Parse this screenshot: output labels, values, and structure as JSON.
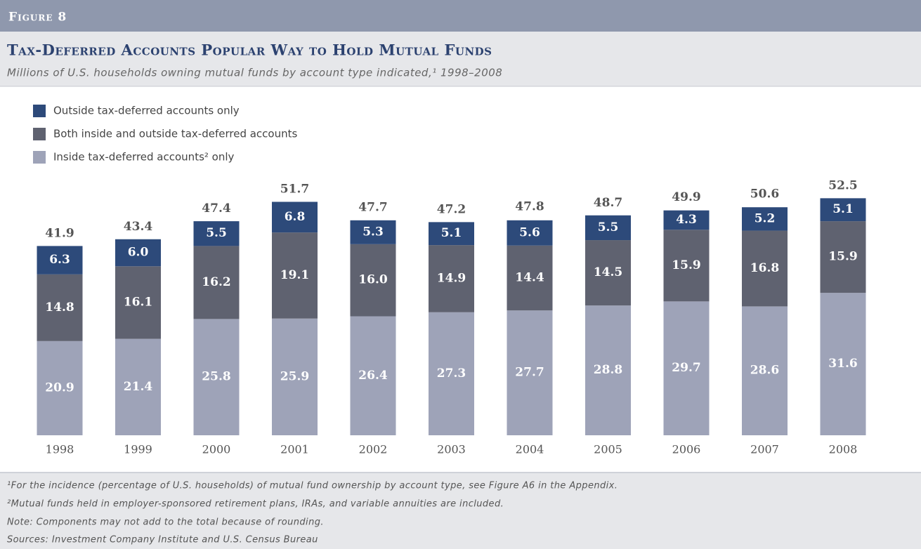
{
  "header": "Figure 8",
  "chart_data": {
    "type": "stacked-bar",
    "title": "Tax-Deferred Accounts Popular Way to Hold Mutual Funds",
    "subtitle": "Millions of U.S. households owning mutual funds by account type indicated,¹ 1998–2008",
    "categories": [
      "1998",
      "1999",
      "2000",
      "2001",
      "2002",
      "2003",
      "2004",
      "2005",
      "2006",
      "2007",
      "2008"
    ],
    "series": [
      {
        "name": "Outside tax-deferred accounts only",
        "color": "#2d4a7a",
        "values": [
          6.3,
          6.0,
          5.5,
          6.8,
          5.3,
          5.1,
          5.6,
          5.5,
          4.3,
          5.2,
          5.1
        ],
        "value_labels": [
          "6.3",
          "6.0",
          "5.5",
          "6.8",
          "5.3",
          "5.1",
          "5.6",
          "5.5",
          "4.3",
          "5.2",
          "5.1"
        ]
      },
      {
        "name": "Both inside and outside tax-deferred accounts",
        "color": "#5f6270",
        "values": [
          14.8,
          16.1,
          16.2,
          19.1,
          16.0,
          14.9,
          14.4,
          14.5,
          15.9,
          16.8,
          15.9
        ],
        "value_labels": [
          "14.8",
          "16.1",
          "16.2",
          "19.1",
          "16.0",
          "14.9",
          "14.4",
          "14.5",
          "15.9",
          "16.8",
          "15.9"
        ]
      },
      {
        "name": "Inside tax-deferred accounts² only",
        "color": "#9ea3b8",
        "values": [
          20.9,
          21.4,
          25.8,
          25.9,
          26.4,
          27.3,
          27.7,
          28.8,
          29.7,
          28.6,
          31.6
        ],
        "value_labels": [
          "20.9",
          "21.4",
          "25.8",
          "25.9",
          "26.4",
          "27.3",
          "27.7",
          "28.8",
          "29.7",
          "28.6",
          "31.6"
        ]
      }
    ],
    "totals": [
      41.9,
      43.4,
      47.4,
      51.7,
      47.7,
      47.2,
      47.8,
      48.7,
      49.9,
      50.6,
      52.5
    ]
  },
  "notes": [
    "¹For the incidence (percentage of U.S. households) of mutual fund ownership by account type, see Figure A6 in the Appendix.",
    "²Mutual funds held in employer-sponsored retirement plans, IRAs, and variable annuities are included.",
    "Note: Components may not add to the total because of rounding.",
    "Sources: Investment Company Institute and U.S. Census Bureau"
  ]
}
